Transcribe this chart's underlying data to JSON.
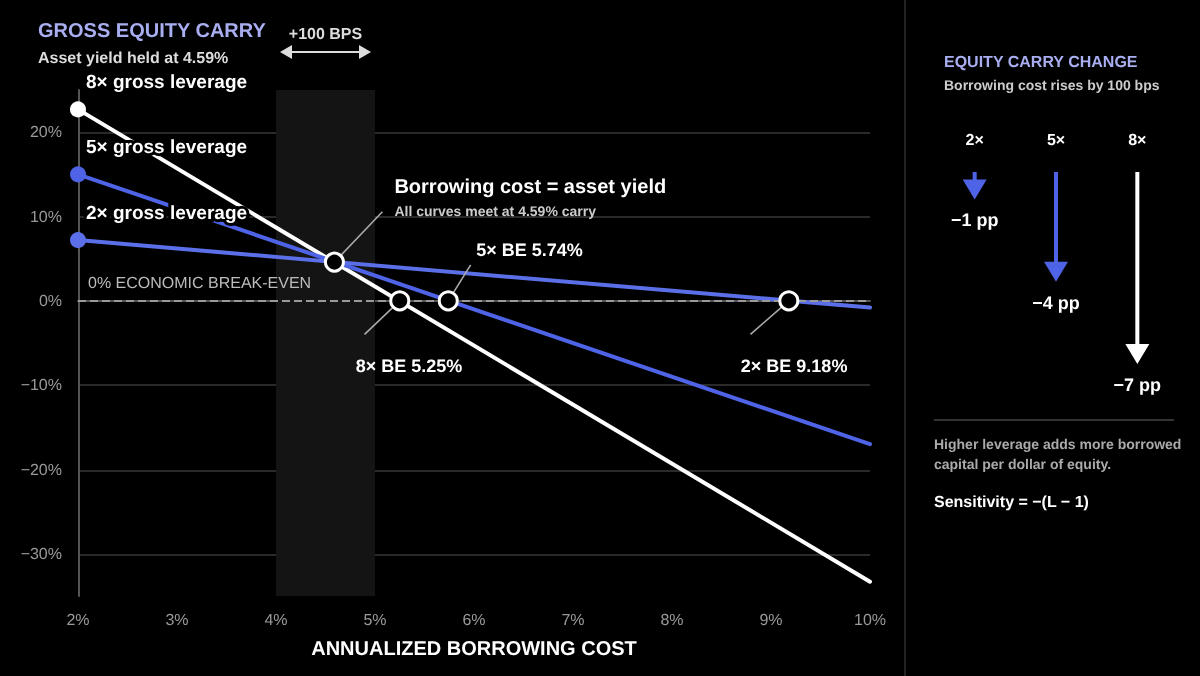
{
  "chart_data": [
    {
      "type": "line",
      "title": "GROSS EQUITY CARRY",
      "subtitle": "Asset yield held at 4.59%",
      "xlabel": "ANNUALIZED BORROWING COST",
      "x": [
        2,
        10
      ],
      "series": [
        {
          "name": "8× gross leverage",
          "color": "#ffffff",
          "values": [
            22.7,
            -33.3
          ]
        },
        {
          "name": "5× gross leverage",
          "color": "#4f63e6",
          "values": [
            15,
            -17
          ]
        },
        {
          "name": "2× gross leverage",
          "color": "#5b6fe8",
          "values": [
            7.2,
            -0.8
          ]
        }
      ],
      "xlim": [
        2,
        10
      ],
      "xticks": [
        {
          "value": 2,
          "label": "2%"
        },
        {
          "value": 3,
          "label": "3%"
        },
        {
          "value": 4,
          "label": "4%"
        },
        {
          "value": 5,
          "label": "5%"
        },
        {
          "value": 6,
          "label": "6%"
        },
        {
          "value": 7,
          "label": "7%"
        },
        {
          "value": 8,
          "label": "8%"
        },
        {
          "value": 9,
          "label": "9%"
        },
        {
          "value": 10,
          "label": "10%"
        }
      ],
      "ylim": [
        -35,
        25
      ],
      "yticks": [
        {
          "value": -30,
          "label": "−30%"
        },
        {
          "value": -20,
          "label": "−20%"
        },
        {
          "value": -10,
          "label": "−10%"
        },
        {
          "value": 0,
          "label": "0%"
        },
        {
          "value": 10,
          "label": "10%"
        },
        {
          "value": 20,
          "label": "20%"
        }
      ],
      "grid": "y",
      "legend": false,
      "marker": "circle",
      "line_style": "solid",
      "ref_lines": [
        {
          "axis": "y",
          "value": 0,
          "label": "0% ECONOMIC BREAK-EVEN",
          "color": "#9a9a9a",
          "line_style": "dashed"
        }
      ],
      "bands": [
        {
          "axis": "x",
          "from": 4,
          "to": 5,
          "label": "+100 BPS",
          "color": "#141414"
        }
      ],
      "annotations": [
        {
          "text": "Borrowing cost = asset yield",
          "x": 4.59,
          "y": 4.59
        },
        {
          "text": "All curves meet at 4.59% carry",
          "x": 4.59,
          "y": 4.59
        },
        {
          "text": "5× BE 5.74%",
          "x": 5.74,
          "y": 0
        },
        {
          "text": "8× BE 5.25%",
          "x": 5.25,
          "y": 0
        },
        {
          "text": "2× BE 9.18%",
          "x": 9.18,
          "y": 0
        }
      ]
    },
    {
      "type": "other",
      "title": "EQUITY CARRY CHANGE",
      "subtitle": "Borrowing cost rises by 100 bps",
      "categories": [
        "2×",
        "5×",
        "8×"
      ],
      "values": [
        -1,
        -4,
        -7
      ],
      "colors": [
        "#4f63e6",
        "#4f63e6",
        "#ffffff"
      ],
      "value_labels": [
        "−1 pp",
        "−4 pp",
        "−7 pp"
      ],
      "annotations": [
        "Higher leverage adds more borrowed capital per dollar of equity.",
        "Sensitivity = −(L − 1)"
      ]
    }
  ]
}
